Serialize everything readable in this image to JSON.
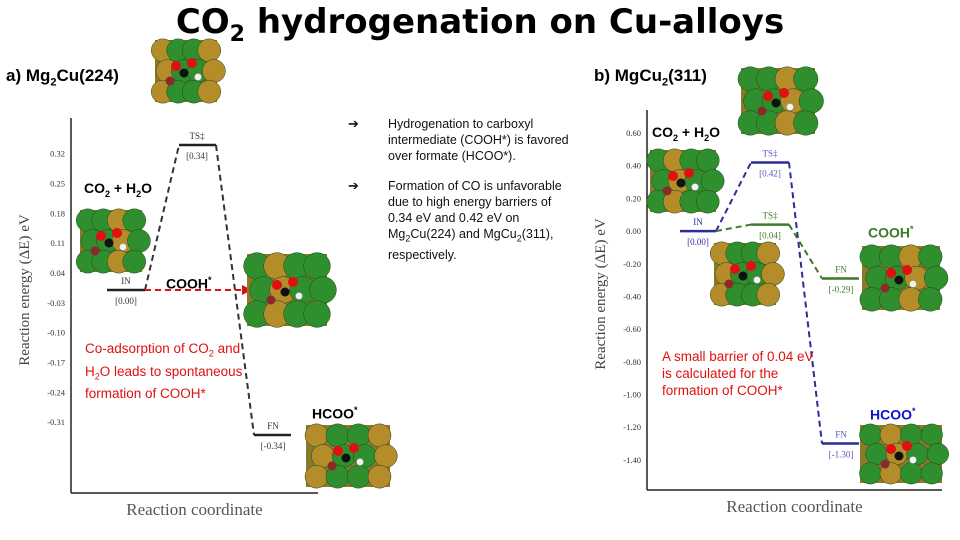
{
  "title": {
    "pre": "CO",
    "sub": "2",
    "post": " hydrogenation on Cu-alloys"
  },
  "panel_a": {
    "pre": "a) Mg",
    "sub1": "2",
    "mid": "Cu(224)"
  },
  "panel_b": {
    "pre": "b) MgCu",
    "sub1": "2",
    "mid": "(311)"
  },
  "bullets": [
    {
      "text": "Hydrogenation to carboxyl intermediate (COOH*) is favored over formate (HCOO*)."
    },
    {
      "t1": "Formation of CO is unfavorable due to high energy barriers of 0.34 eV and 0.42 eV on Mg",
      "s1": "2",
      "t2": "Cu(224) and MgCu",
      "s2": "2",
      "t3": "(311), respectively."
    }
  ],
  "note_a": {
    "t1": "Co-adsorption of CO",
    "s1": "2",
    "t2": " and H",
    "s2": "2",
    "t3": "O leads to spontaneous formation of COOH*"
  },
  "note_b": {
    "text": "A small barrier of 0.04 eV is calculated for the formation of COOH*"
  },
  "labels": {
    "a_co2h2o": {
      "t1": "CO",
      "s1": "2",
      "t2": " + H",
      "s2": "2",
      "t3": "O"
    },
    "a_cooh": {
      "t1": "COOH",
      "sup": "*"
    },
    "a_hcoo": {
      "t1": "HCOO",
      "sup": "*"
    },
    "b_co2h2o": {
      "t1": "CO",
      "s1": "2",
      "t2": " + H",
      "s2": "2",
      "t3": "O"
    },
    "b_cooh": {
      "t1": "COOH",
      "sup": "*"
    },
    "b_hcoo": {
      "t1": "HCOO",
      "sup": "*"
    }
  },
  "colors": {
    "red": "#e01010",
    "blue": "#2b2b9a",
    "green": "#3d7a2a",
    "dark": "#222222",
    "cooh_green": "#3d7a2a",
    "hcoo_blue": "#1010d0"
  },
  "chart_data": [
    {
      "type": "line",
      "name": "Mg2Cu(224)",
      "ylabel": "Reaction energy (ΔE) eV",
      "xlabel": "Reaction coordinate",
      "ylim": [
        -0.38,
        0.38
      ],
      "yticks": [
        "0.32",
        "0.25",
        "0.18",
        "0.11",
        "0.04",
        "-0.03",
        "-0.10",
        "-0.17",
        "-0.24",
        "-0.31"
      ],
      "ytick_values": [
        0.32,
        0.25,
        0.18,
        0.11,
        0.04,
        -0.03,
        -0.1,
        -0.17,
        -0.24,
        -0.31
      ],
      "states": [
        {
          "name": "IN",
          "value": 0.0,
          "label": "[0.00]"
        },
        {
          "name": "TS‡",
          "value": 0.34,
          "label": "[0.34]"
        },
        {
          "name": "FN",
          "value": -0.34,
          "label": "[-0.34]"
        }
      ],
      "cooh_value": 0.0
    },
    {
      "type": "line",
      "name": "MgCu2(311)",
      "ylabel": "Reaction energy (ΔE) eV",
      "xlabel": "Reaction coordinate",
      "ylim": [
        -1.45,
        0.68
      ],
      "yticks": [
        "0.60",
        "0.40",
        "0.20",
        "0.00",
        "-0.20",
        "-0.40",
        "-0.60",
        "-0.80",
        "-1.00",
        "-1.20",
        "-1.40"
      ],
      "ytick_values": [
        0.6,
        0.4,
        0.2,
        0.0,
        -0.2,
        -0.4,
        -0.6,
        -0.8,
        -1.0,
        -1.2,
        -1.4
      ],
      "series": [
        {
          "path": "HCOO",
          "states": [
            {
              "name": "IN",
              "value": 0.0,
              "label": "[0.00]"
            },
            {
              "name": "TS‡",
              "value": 0.42,
              "label": "[0.42]"
            },
            {
              "name": "FN",
              "value": -1.3,
              "label": "[-1.30]"
            }
          ]
        },
        {
          "path": "COOH",
          "states": [
            {
              "name": "TS‡",
              "value": 0.04,
              "label": "[0.04]"
            },
            {
              "name": "FN",
              "value": -0.29,
              "label": "[-0.29]"
            }
          ]
        }
      ]
    }
  ]
}
